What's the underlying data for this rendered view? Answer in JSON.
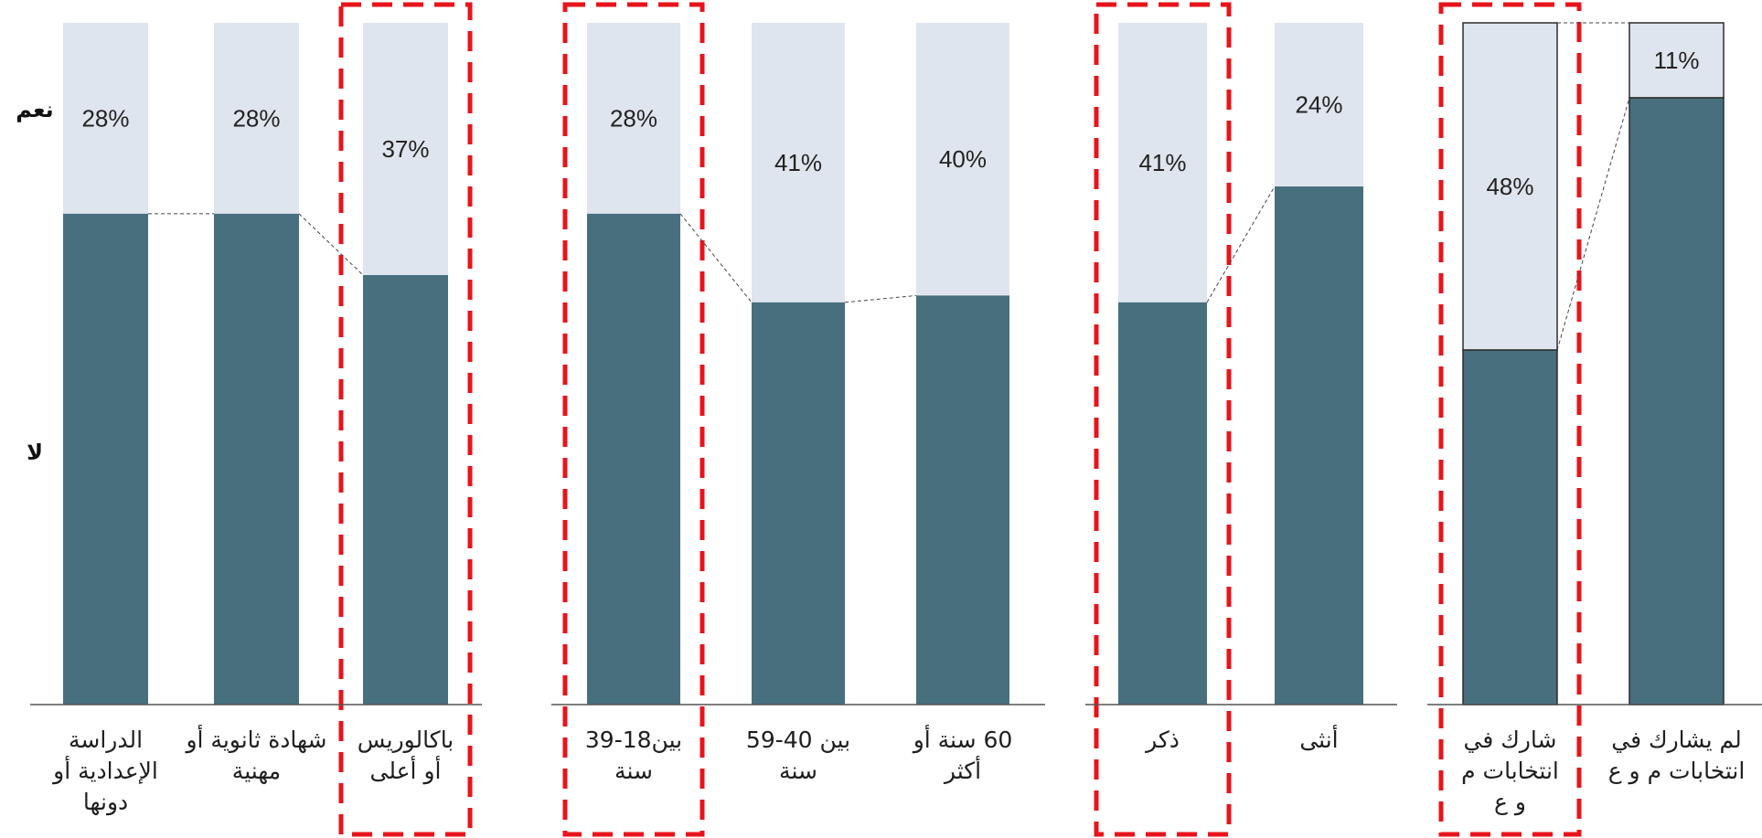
{
  "chart_data": {
    "type": "bar",
    "stacked": true,
    "y_axis_labels": {
      "yes": "نعم",
      "no": "لا"
    },
    "ylim": [
      0,
      100
    ],
    "colors": {
      "yes": "#dfe5ee",
      "no": "#476f7e",
      "highlight": "#e8141b"
    },
    "groups": [
      {
        "bars": [
          {
            "category": [
              "الدراسة",
              "الإعدادية أو",
              "دونها"
            ],
            "yes": 28,
            "no": 72,
            "yes_label": "28%",
            "highlighted": false
          },
          {
            "category": [
              "شهادة ثانوية أو",
              "مهنية"
            ],
            "yes": 28,
            "no": 72,
            "yes_label": "28%",
            "highlighted": false
          },
          {
            "category": [
              "باكالوريس",
              "أو أعلى"
            ],
            "yes": 37,
            "no": 63,
            "yes_label": "37%",
            "highlighted": true
          }
        ]
      },
      {
        "bars": [
          {
            "category": [
              "بين18-39",
              "سنة"
            ],
            "yes": 28,
            "no": 72,
            "yes_label": "28%",
            "highlighted": true
          },
          {
            "category": [
              "بين 40-59",
              "سنة"
            ],
            "yes": 41,
            "no": 59,
            "yes_label": "41%",
            "highlighted": false
          },
          {
            "category": [
              "60 سنة أو",
              "أكثر"
            ],
            "yes": 40,
            "no": 60,
            "yes_label": "40%",
            "highlighted": false
          }
        ]
      },
      {
        "bars": [
          {
            "category": [
              "ذكر"
            ],
            "yes": 41,
            "no": 59,
            "yes_label": "41%",
            "highlighted": true
          },
          {
            "category": [
              "أنثى"
            ],
            "yes": 24,
            "no": 76,
            "yes_label": "24%",
            "highlighted": false
          }
        ]
      },
      {
        "bars": [
          {
            "category": [
              "شارك في",
              "انتخابات م",
              "و ع"
            ],
            "yes": 48,
            "no": 52,
            "yes_label": "48%",
            "highlighted": true
          },
          {
            "category": [
              "لم يشارك في",
              "انتخابات م و ع"
            ],
            "yes": 11,
            "no": 89,
            "yes_label": "11%",
            "highlighted": false
          }
        ]
      }
    ]
  }
}
